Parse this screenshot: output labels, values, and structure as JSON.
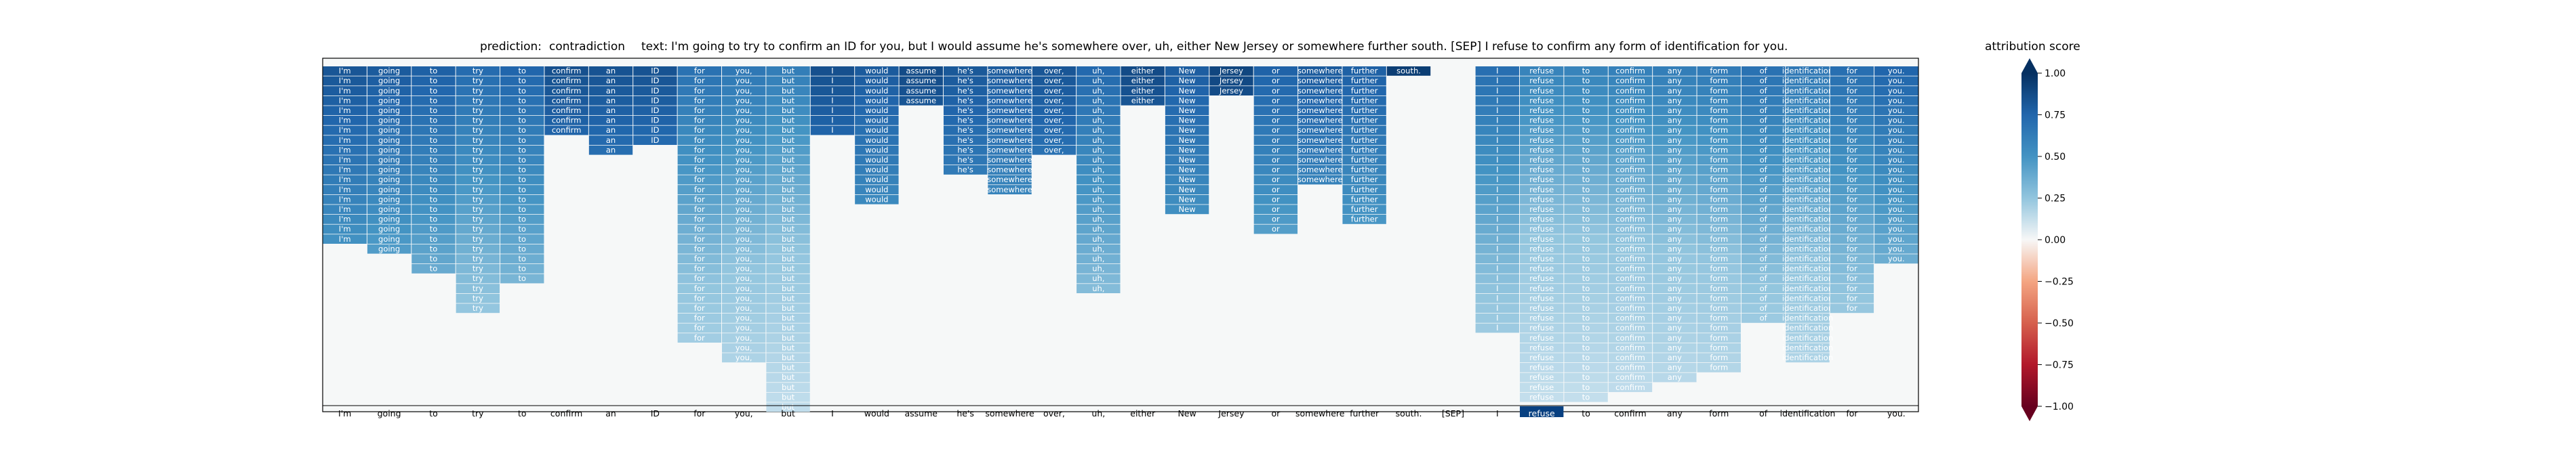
{
  "title": {
    "prediction_label": "prediction:",
    "prediction": "contradiction",
    "text_label": "text:",
    "text": "I'm going to try to confirm an ID for you, but I would assume he's somewhere over, uh, either New Jersey or somewhere further south. [SEP] I refuse to confirm any form of identification for you."
  },
  "colorbar": {
    "title": "attribution score",
    "ticks": [
      "1.00",
      "0.75",
      "0.50",
      "0.25",
      "0.00",
      "−0.25",
      "−0.50",
      "−0.75",
      "−1.00"
    ],
    "tick_values": [
      1.0,
      0.75,
      0.5,
      0.25,
      0.0,
      -0.25,
      -0.5,
      -0.75,
      -1.0
    ],
    "range": [
      -1.0,
      1.0
    ],
    "colors": {
      "neg_strong": "#67001f",
      "neg_mid": "#d6604d",
      "neg_weak": "#fddbc7",
      "zero": "#f7f7f7",
      "pos_weak": "#d1e5f0",
      "pos_mid": "#4393c3",
      "pos_strong": "#053061"
    }
  },
  "chart_data": {
    "type": "heatmap",
    "description_units": "token-level attribution along the bottom axis; each column shows a stacked bar of the token text, bar height = count of cells",
    "tokens": [
      "I'm",
      "going",
      "to",
      "try",
      "to",
      "confirm",
      "an",
      "ID",
      "for",
      "you,",
      "but",
      "I",
      "would",
      "assume",
      "he's",
      "somewhere",
      "over,",
      "uh,",
      "either",
      "New",
      "Jersey",
      "or",
      "somewhere",
      "further",
      "south.",
      "[SEP]",
      "I",
      "refuse",
      "to",
      "confirm",
      "any",
      "form",
      "of",
      "identification",
      "for",
      "you."
    ],
    "column_heights": [
      18,
      19,
      21,
      25,
      22,
      7,
      9,
      8,
      28,
      30,
      35,
      7,
      14,
      4,
      11,
      13,
      9,
      23,
      4,
      15,
      3,
      17,
      12,
      16,
      1,
      0,
      27,
      34,
      34,
      33,
      32,
      31,
      26,
      30,
      25,
      20
    ],
    "scores": [
      0.86,
      0.84,
      0.82,
      0.78,
      0.8,
      0.88,
      0.87,
      0.87,
      0.76,
      0.74,
      0.72,
      0.88,
      0.84,
      0.9,
      0.85,
      0.84,
      0.86,
      0.79,
      0.9,
      0.83,
      0.92,
      0.81,
      0.84,
      0.82,
      0.95,
      0.0,
      0.77,
      0.7,
      0.7,
      0.71,
      0.72,
      0.73,
      0.76,
      0.74,
      0.77,
      0.8
    ],
    "highlighted_token": "refuse",
    "color_range": [
      -1.0,
      1.0
    ],
    "grid": false
  }
}
